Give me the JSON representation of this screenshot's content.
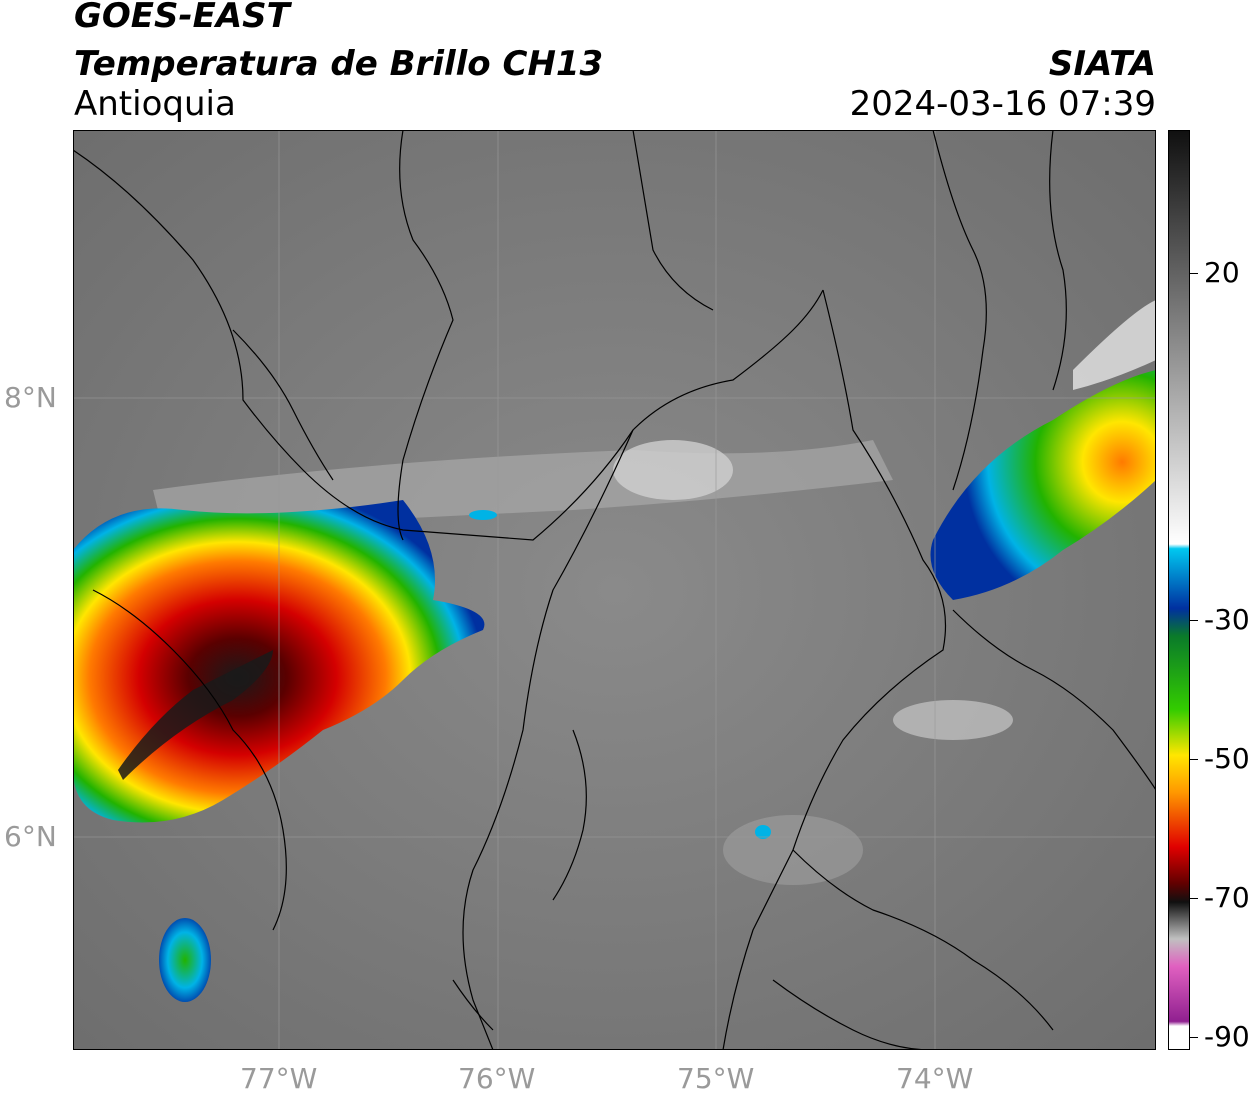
{
  "header": {
    "title1": "GOES-EAST",
    "title2": "Temperatura de Brillo CH13",
    "region": "Antioquia",
    "organization": "SIATA",
    "datetime": "2024-03-16 07:39"
  },
  "axes": {
    "x_ticks": [
      "77°W",
      "76°W",
      "75°W",
      "74°W"
    ],
    "y_ticks": [
      "8°N",
      "6°N"
    ]
  },
  "colorbar": {
    "ticks": [
      "20",
      "-30",
      "-50",
      "-70",
      "-90"
    ]
  },
  "colors": {
    "background": "#808080",
    "cold": "#1a1a1a",
    "red": "#d40000",
    "orange": "#ff7a00",
    "yellow": "#ffe600",
    "green": "#22b300",
    "cyan": "#00b3e6",
    "blue": "#0030a0",
    "magenta": "#c020c0"
  }
}
